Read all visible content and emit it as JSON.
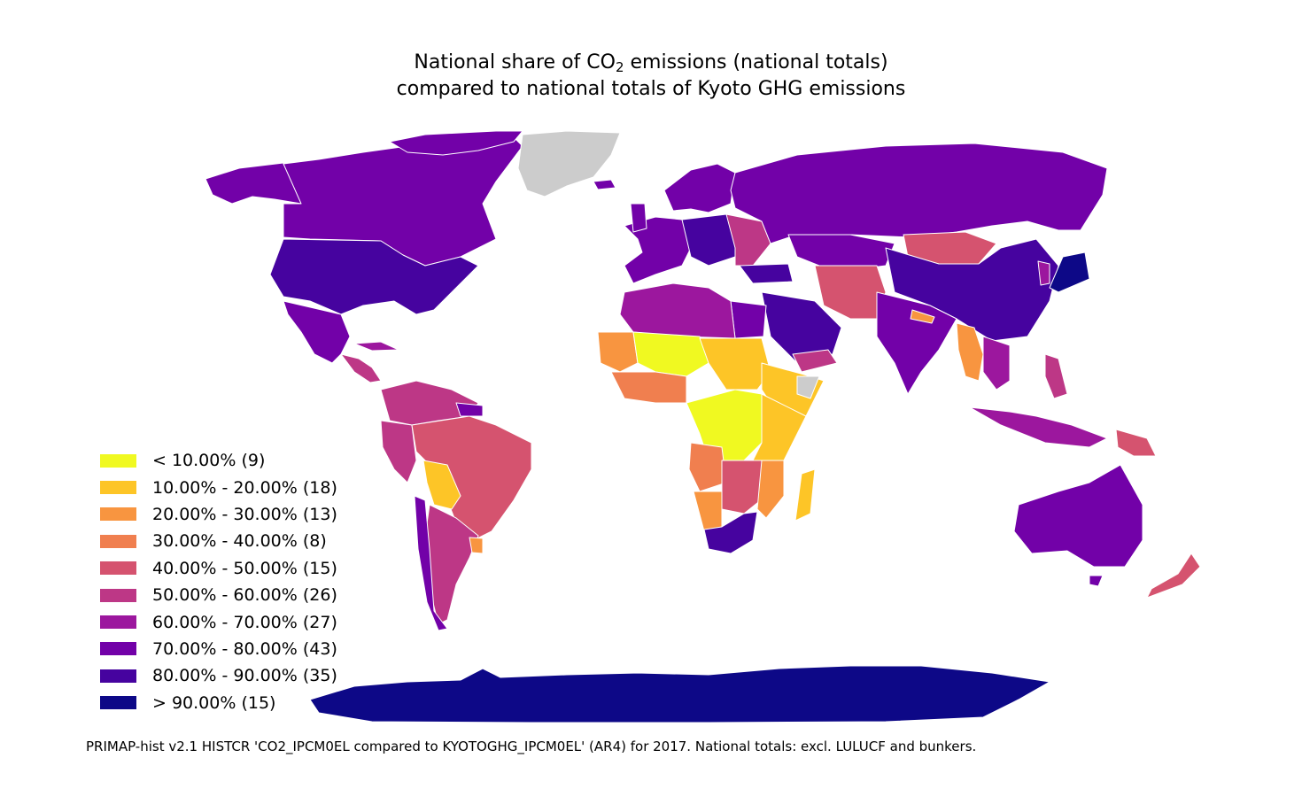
{
  "title": {
    "line1_pre": "National share of CO",
    "line1_sub": "2",
    "line1_post": " emissions (national totals)",
    "line2": "compared to national totals of Kyoto GHG emissions"
  },
  "legend": [
    {
      "label": "< 10.00% (9)",
      "color": "#f0f921"
    },
    {
      "label": "10.00% - 20.00% (18)",
      "color": "#fdc527"
    },
    {
      "label": "20.00% - 30.00% (13)",
      "color": "#f89540"
    },
    {
      "label": "30.00% - 40.00% (8)",
      "color": "#f07f4f"
    },
    {
      "label": "40.00% - 50.00% (15)",
      "color": "#d5536f"
    },
    {
      "label": "50.00% - 60.00% (26)",
      "color": "#bd3786"
    },
    {
      "label": "60.00% - 70.00% (27)",
      "color": "#9c179e"
    },
    {
      "label": "70.00% - 80.00% (43)",
      "color": "#7201a8"
    },
    {
      "label": "80.00% - 90.00% (35)",
      "color": "#46039f"
    },
    {
      "label": "> 90.00% (15)",
      "color": "#0d0887"
    }
  ],
  "no_data_color": "#cccccc",
  "footnote": "PRIMAP-hist v2.1 HISTCR 'CO2_IPCM0EL compared to KYOTOGHG_IPCM0EL' (AR4) for 2017. National totals: excl. LULUCF and bunkers."
}
